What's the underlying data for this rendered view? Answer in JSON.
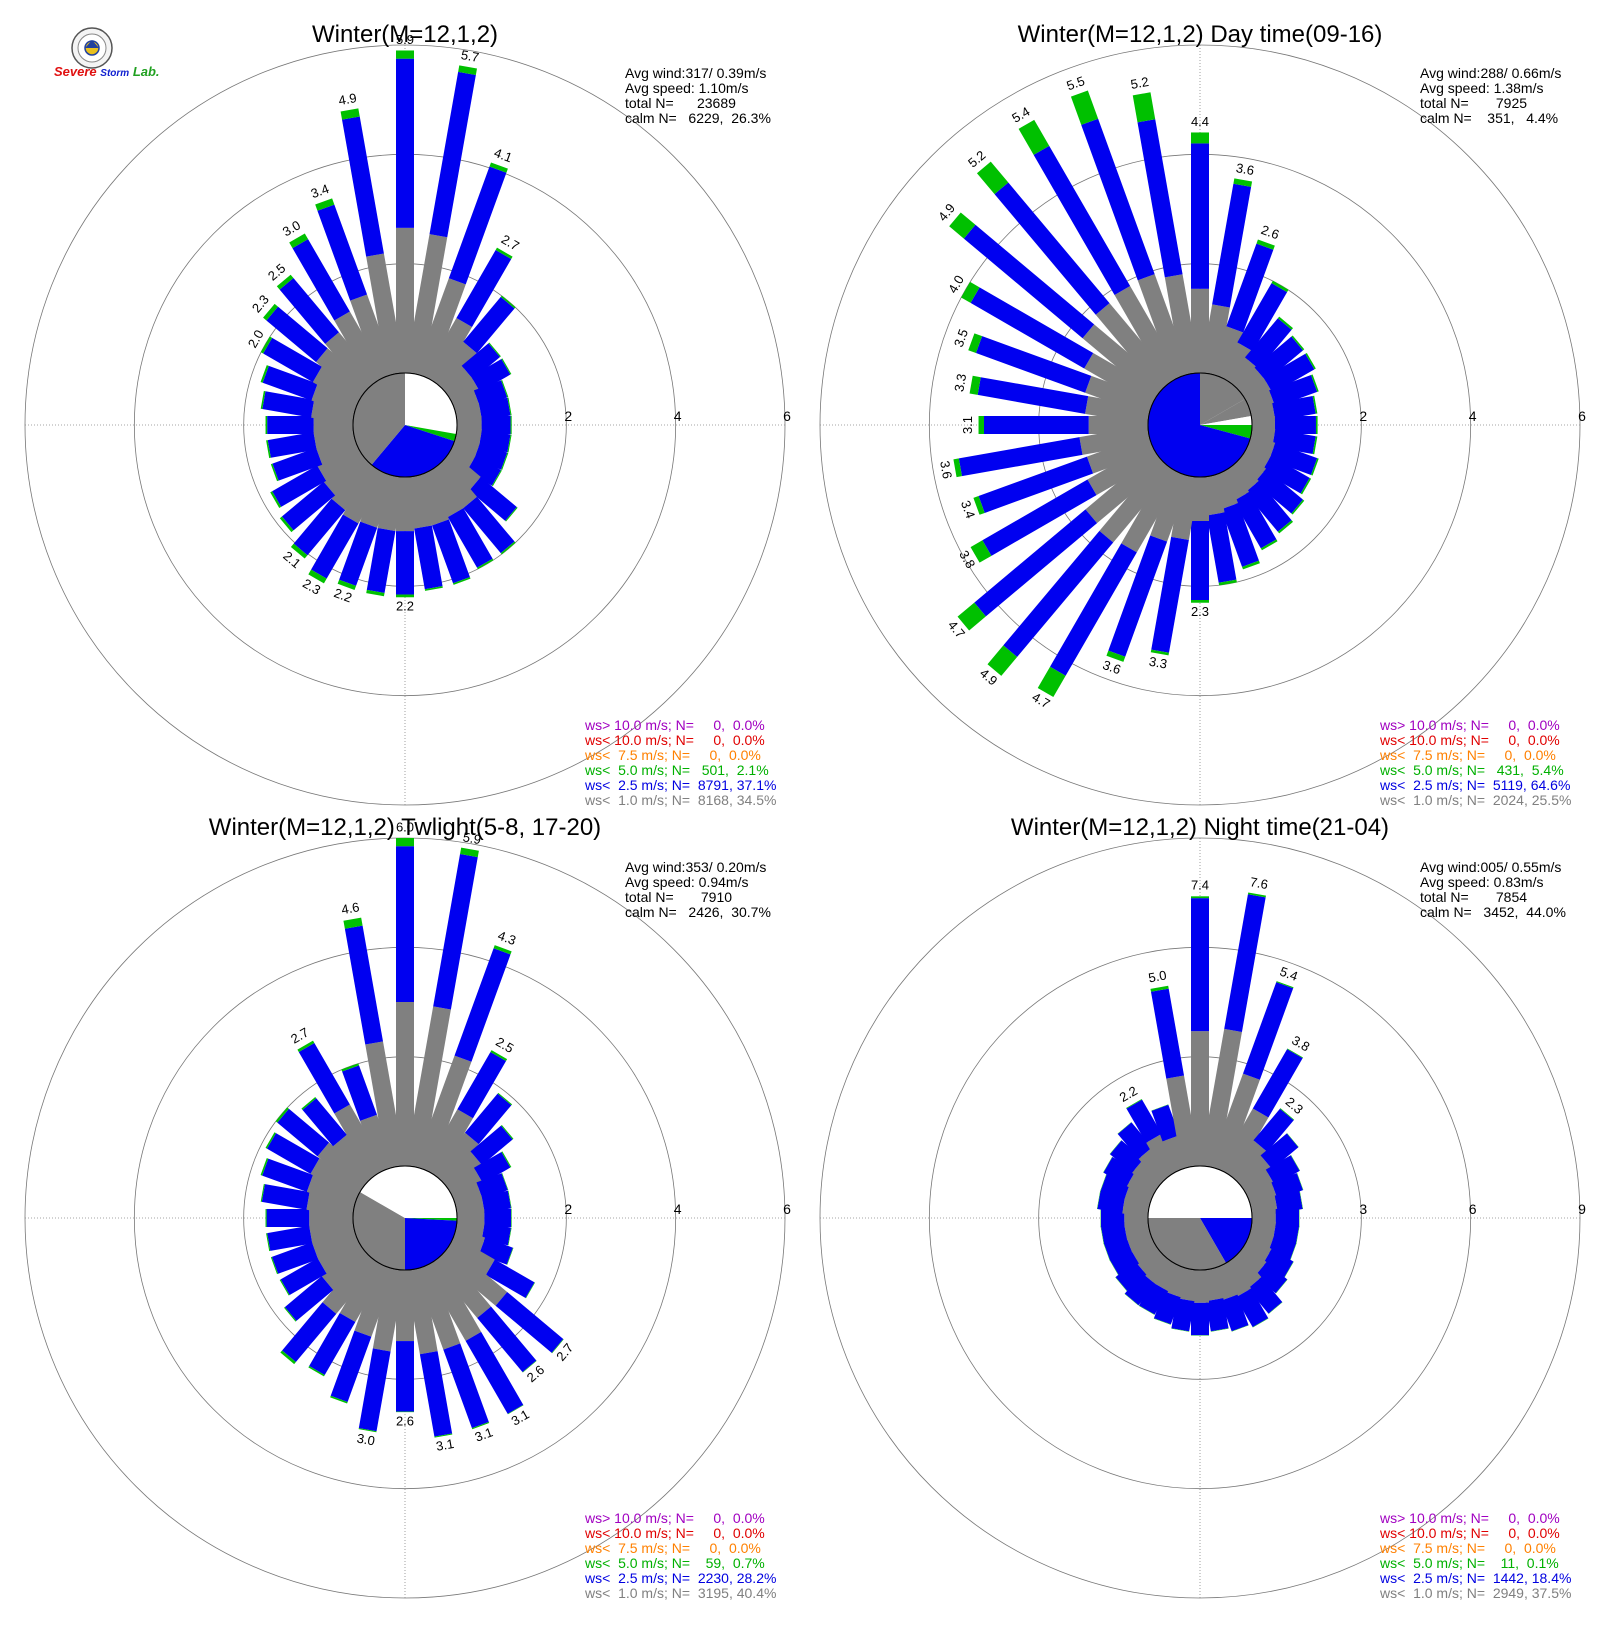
{
  "logo": {
    "text_1": "Severe",
    "text_2": "Storm",
    "text_3": "Lab."
  },
  "chart_data": [
    {
      "type": "wind-rose",
      "title": "Winter(M=12,1,2)",
      "stats": [
        "Avg wind:317/ 0.39m/s",
        "Avg speed: 1.10m/s",
        "total N=      23689",
        "calm N=   6229,  26.3%"
      ],
      "ring_labels": [
        "2",
        "4",
        "6"
      ],
      "rmax": 6,
      "ring_values": [
        2,
        4,
        6
      ],
      "directions_deg": [
        0,
        10,
        20,
        30,
        40,
        50,
        60,
        70,
        80,
        90,
        100,
        110,
        120,
        130,
        140,
        150,
        160,
        170,
        180,
        190,
        200,
        210,
        220,
        230,
        240,
        250,
        260,
        270,
        280,
        290,
        300,
        310,
        320,
        330,
        340,
        350
      ],
      "values": [
        5.9,
        5.7,
        4.1,
        2.7,
        2.0,
        1.2,
        1.2,
        1.0,
        1.0,
        1.0,
        1.0,
        1.0,
        1.0,
        1.6,
        2.0,
        2.0,
        2.1,
        2.1,
        2.2,
        2.2,
        2.2,
        2.3,
        2.1,
        1.9,
        1.8,
        1.6,
        1.6,
        1.6,
        1.7,
        1.8,
        2.0,
        2.3,
        2.5,
        3.0,
        3.4,
        4.9
      ],
      "green_values": [
        0.15,
        0.12,
        0.08,
        0.05,
        0.03,
        0.02,
        0.02,
        0.02,
        0.02,
        0.02,
        0.02,
        0.02,
        0.02,
        0.02,
        0.03,
        0.03,
        0.03,
        0.03,
        0.05,
        0.06,
        0.08,
        0.1,
        0.08,
        0.05,
        0.04,
        0.03,
        0.03,
        0.03,
        0.03,
        0.04,
        0.05,
        0.08,
        0.08,
        0.12,
        0.12,
        0.15
      ],
      "gray_ratio": 0.45,
      "bar_labels": [
        {
          "dir": 0,
          "text": "5.9"
        },
        {
          "dir": 10,
          "text": "5.7"
        },
        {
          "dir": 20,
          "text": "4.1"
        },
        {
          "dir": 30,
          "text": "2.7"
        },
        {
          "dir": 180,
          "text": "2.2"
        },
        {
          "dir": 200,
          "text": "2.2"
        },
        {
          "dir": 210,
          "text": "2.3"
        },
        {
          "dir": 220,
          "text": "2.1"
        },
        {
          "dir": 300,
          "text": "2.0"
        },
        {
          "dir": 310,
          "text": "2.3"
        },
        {
          "dir": 320,
          "text": "2.5"
        },
        {
          "dir": 330,
          "text": "3.0"
        },
        {
          "dir": 340,
          "text": "3.4"
        },
        {
          "dir": 350,
          "text": "4.9"
        }
      ],
      "calm_pie": [
        {
          "color": "white",
          "start": -90,
          "end": 10
        },
        {
          "color": "green",
          "start": 10,
          "end": 18
        },
        {
          "color": "blue",
          "start": 18,
          "end": 130
        },
        {
          "color": "gray",
          "start": 130,
          "end": 270
        }
      ],
      "legend": [
        {
          "text": "ws> 10.0 m/s; N=     0,  0.0%",
          "color": "#a000c0"
        },
        {
          "text": "ws< 10.0 m/s; N=     0,  0.0%",
          "color": "#e00000"
        },
        {
          "text": "ws<  7.5 m/s; N=     0,  0.0%",
          "color": "#ff8000"
        },
        {
          "text": "ws<  5.0 m/s; N=   501,  2.1%",
          "color": "#00b000"
        },
        {
          "text": "ws<  2.5 m/s; N=  8791, 37.1%",
          "color": "#0000e0"
        },
        {
          "text": "ws<  1.0 m/s; N=  8168, 34.5%",
          "color": "#808080"
        }
      ]
    },
    {
      "type": "wind-rose",
      "title": "Winter(M=12,1,2) Day time(09-16)",
      "stats": [
        "Avg wind:288/ 0.66m/s",
        "Avg speed: 1.38m/s",
        "total N=       7925",
        "calm N=    351,   4.4%"
      ],
      "ring_labels": [
        "2",
        "4",
        "6"
      ],
      "rmax": 6,
      "ring_values": [
        2,
        4,
        6
      ],
      "directions_deg": [
        0,
        10,
        20,
        30,
        40,
        50,
        60,
        70,
        80,
        90,
        100,
        110,
        120,
        130,
        140,
        150,
        160,
        170,
        180,
        190,
        200,
        210,
        220,
        230,
        240,
        250,
        260,
        270,
        280,
        290,
        300,
        310,
        320,
        330,
        340,
        350
      ],
      "values": [
        4.4,
        3.6,
        2.6,
        2.0,
        1.5,
        1.4,
        1.4,
        1.3,
        1.2,
        1.2,
        1.2,
        1.3,
        1.3,
        1.4,
        1.5,
        1.6,
        1.8,
        2.0,
        2.3,
        3.3,
        3.6,
        4.7,
        4.9,
        4.7,
        3.8,
        3.4,
        3.6,
        3.1,
        3.3,
        3.5,
        4.0,
        4.9,
        5.2,
        5.4,
        5.5,
        5.2
      ],
      "green_values": [
        0.2,
        0.1,
        0.08,
        0.05,
        0.04,
        0.03,
        0.03,
        0.03,
        0.03,
        0.03,
        0.03,
        0.03,
        0.03,
        0.03,
        0.04,
        0.04,
        0.05,
        0.05,
        0.05,
        0.05,
        0.1,
        0.45,
        0.45,
        0.4,
        0.25,
        0.1,
        0.1,
        0.1,
        0.15,
        0.15,
        0.2,
        0.35,
        0.5,
        0.55,
        0.55,
        0.5
      ],
      "gray_ratio": 0.35,
      "bar_labels": [
        {
          "dir": 0,
          "text": "4.4"
        },
        {
          "dir": 10,
          "text": "3.6"
        },
        {
          "dir": 20,
          "text": "2.6"
        },
        {
          "dir": 180,
          "text": "2.3"
        },
        {
          "dir": 190,
          "text": "3.3"
        },
        {
          "dir": 200,
          "text": "3.6"
        },
        {
          "dir": 210,
          "text": "4.7"
        },
        {
          "dir": 220,
          "text": "4.9"
        },
        {
          "dir": 230,
          "text": "4.7"
        },
        {
          "dir": 240,
          "text": "3.8"
        },
        {
          "dir": 250,
          "text": "3.4"
        },
        {
          "dir": 260,
          "text": "3.6"
        },
        {
          "dir": 270,
          "text": "3.1"
        },
        {
          "dir": 280,
          "text": "3.3"
        },
        {
          "dir": 290,
          "text": "3.5"
        },
        {
          "dir": 300,
          "text": "4.0"
        },
        {
          "dir": 310,
          "text": "4.9"
        },
        {
          "dir": 320,
          "text": "5.2"
        },
        {
          "dir": 330,
          "text": "5.4"
        },
        {
          "dir": 340,
          "text": "5.5"
        },
        {
          "dir": 350,
          "text": "5.2"
        }
      ],
      "calm_pie": [
        {
          "color": "gray",
          "start": -30,
          "end": -10
        },
        {
          "color": "white",
          "start": -10,
          "end": 0
        },
        {
          "color": "green",
          "start": 0,
          "end": 15
        },
        {
          "color": "blue",
          "start": 15,
          "end": 270
        },
        {
          "color": "gray",
          "start": 270,
          "end": 330
        }
      ],
      "legend": [
        {
          "text": "ws> 10.0 m/s; N=     0,  0.0%",
          "color": "#a000c0"
        },
        {
          "text": "ws< 10.0 m/s; N=     0,  0.0%",
          "color": "#e00000"
        },
        {
          "text": "ws<  7.5 m/s; N=     0,  0.0%",
          "color": "#ff8000"
        },
        {
          "text": "ws<  5.0 m/s; N=   431,  5.4%",
          "color": "#00b000"
        },
        {
          "text": "ws<  2.5 m/s; N=  5119, 64.6%",
          "color": "#0000e0"
        },
        {
          "text": "ws<  1.0 m/s; N=  2024, 25.5%",
          "color": "#808080"
        }
      ]
    },
    {
      "type": "wind-rose",
      "title": "Winter(M=12,1,2) Twlight(5-8, 17-20)",
      "stats": [
        "Avg wind:353/ 0.20m/s",
        "Avg speed: 0.94m/s",
        "total N=       7910",
        "calm N=   2426,  30.7%"
      ],
      "ring_labels": [
        "2",
        "4",
        "6"
      ],
      "rmax": 6,
      "ring_values": [
        2,
        4,
        6
      ],
      "directions_deg": [
        0,
        10,
        20,
        30,
        40,
        50,
        60,
        70,
        80,
        90,
        100,
        110,
        120,
        130,
        140,
        150,
        160,
        170,
        180,
        190,
        200,
        210,
        220,
        230,
        240,
        250,
        260,
        270,
        280,
        290,
        300,
        310,
        320,
        330,
        340,
        350
      ],
      "values": [
        6.0,
        5.9,
        4.3,
        2.5,
        1.9,
        1.5,
        1.2,
        1.0,
        1.0,
        1.0,
        1.0,
        1.1,
        1.7,
        2.7,
        2.6,
        3.1,
        3.1,
        3.1,
        2.6,
        3.0,
        2.6,
        2.3,
        2.4,
        1.8,
        1.6,
        1.6,
        1.6,
        1.6,
        1.7,
        1.8,
        1.9,
        2.0,
        1.8,
        2.7,
        2.0,
        4.6
      ],
      "green_values": [
        0.15,
        0.12,
        0.06,
        0.04,
        0.02,
        0.02,
        0.02,
        0.01,
        0.01,
        0.01,
        0.01,
        0.01,
        0.01,
        0.01,
        0.01,
        0.01,
        0.02,
        0.02,
        0.01,
        0.02,
        0.03,
        0.03,
        0.05,
        0.02,
        0.02,
        0.02,
        0.02,
        0.02,
        0.02,
        0.03,
        0.03,
        0.04,
        0.03,
        0.05,
        0.04,
        0.15
      ],
      "gray_ratio": 0.5,
      "bar_labels": [
        {
          "dir": 0,
          "text": "6.0"
        },
        {
          "dir": 10,
          "text": "5.9"
        },
        {
          "dir": 20,
          "text": "4.3"
        },
        {
          "dir": 30,
          "text": "2.5"
        },
        {
          "dir": 130,
          "text": "2.7"
        },
        {
          "dir": 140,
          "text": "2.6"
        },
        {
          "dir": 150,
          "text": "3.1"
        },
        {
          "dir": 160,
          "text": "3.1"
        },
        {
          "dir": 170,
          "text": "3.1"
        },
        {
          "dir": 180,
          "text": "2.6"
        },
        {
          "dir": 190,
          "text": "3.0"
        },
        {
          "dir": 330,
          "text": "2.7"
        },
        {
          "dir": 350,
          "text": "4.6"
        }
      ],
      "calm_pie": [
        {
          "color": "white",
          "start": -90,
          "end": 0
        },
        {
          "color": "green",
          "start": 0,
          "end": 3
        },
        {
          "color": "blue",
          "start": 3,
          "end": 90
        },
        {
          "color": "gray",
          "start": 90,
          "end": 210
        },
        {
          "color": "white",
          "start": 210,
          "end": 270
        }
      ],
      "legend": [
        {
          "text": "ws> 10.0 m/s; N=     0,  0.0%",
          "color": "#a000c0"
        },
        {
          "text": "ws< 10.0 m/s; N=     0,  0.0%",
          "color": "#e00000"
        },
        {
          "text": "ws<  7.5 m/s; N=     0,  0.0%",
          "color": "#ff8000"
        },
        {
          "text": "ws<  5.0 m/s; N=    59,  0.7%",
          "color": "#00b000"
        },
        {
          "text": "ws<  2.5 m/s; N=  2230, 28.2%",
          "color": "#0000e0"
        },
        {
          "text": "ws<  1.0 m/s; N=  3195, 40.4%",
          "color": "#808080"
        }
      ]
    },
    {
      "type": "wind-rose",
      "title": "Winter(M=12,1,2) Night time(21-04)",
      "stats": [
        "Avg wind:005/ 0.55m/s",
        "Avg speed: 0.83m/s",
        "total N=       7854",
        "calm N=   3452,  44.0%"
      ],
      "ring_labels": [
        "3",
        "6",
        "9"
      ],
      "rmax": 9,
      "ring_values": [
        3,
        6,
        9
      ],
      "directions_deg": [
        0,
        10,
        20,
        30,
        40,
        50,
        60,
        70,
        80,
        90,
        100,
        110,
        120,
        130,
        140,
        150,
        160,
        170,
        180,
        190,
        200,
        210,
        220,
        230,
        240,
        250,
        260,
        270,
        280,
        290,
        300,
        310,
        320,
        330,
        340,
        350
      ],
      "values": [
        7.4,
        7.6,
        5.4,
        3.8,
        2.3,
        1.9,
        1.6,
        1.5,
        1.4,
        1.3,
        1.3,
        1.3,
        1.4,
        1.5,
        1.8,
        1.9,
        1.8,
        1.7,
        1.8,
        1.7,
        1.6,
        1.5,
        1.5,
        1.4,
        1.3,
        1.3,
        1.3,
        1.3,
        1.4,
        1.4,
        1.5,
        1.6,
        1.8,
        2.2,
        1.8,
        5.0
      ],
      "green_values": [
        0.05,
        0.05,
        0.03,
        0.02,
        0.02,
        0.01,
        0.01,
        0.01,
        0.01,
        0.01,
        0.01,
        0.01,
        0.01,
        0.01,
        0.01,
        0.01,
        0.01,
        0.01,
        0.01,
        0.01,
        0.01,
        0.01,
        0.01,
        0.01,
        0.01,
        0.01,
        0.01,
        0.01,
        0.01,
        0.01,
        0.01,
        0.01,
        0.01,
        0.02,
        0.01,
        0.08
      ],
      "gray_ratio": 0.5,
      "bar_labels": [
        {
          "dir": 0,
          "text": "7.4"
        },
        {
          "dir": 10,
          "text": "7.6"
        },
        {
          "dir": 20,
          "text": "5.4"
        },
        {
          "dir": 30,
          "text": "3.8"
        },
        {
          "dir": 40,
          "text": "2.3"
        },
        {
          "dir": 330,
          "text": "2.2"
        },
        {
          "dir": 350,
          "text": "5.0"
        }
      ],
      "calm_pie": [
        {
          "color": "white",
          "start": -90,
          "end": 0
        },
        {
          "color": "blue",
          "start": 0,
          "end": 60
        },
        {
          "color": "gray",
          "start": 60,
          "end": 180
        },
        {
          "color": "white",
          "start": 180,
          "end": 270
        }
      ],
      "legend": [
        {
          "text": "ws> 10.0 m/s; N=     0,  0.0%",
          "color": "#a000c0"
        },
        {
          "text": "ws< 10.0 m/s; N=     0,  0.0%",
          "color": "#e00000"
        },
        {
          "text": "ws<  7.5 m/s; N=     0,  0.0%",
          "color": "#ff8000"
        },
        {
          "text": "ws<  5.0 m/s; N=    11,  0.1%",
          "color": "#00b000"
        },
        {
          "text": "ws<  2.5 m/s; N=  1442, 18.4%",
          "color": "#0000e0"
        },
        {
          "text": "ws<  1.0 m/s; N=  2949, 37.5%",
          "color": "#808080"
        }
      ]
    }
  ],
  "colors": {
    "blue": "#0000f0",
    "green": "#00c000",
    "gray": "#808080",
    "grid": "#777777"
  }
}
